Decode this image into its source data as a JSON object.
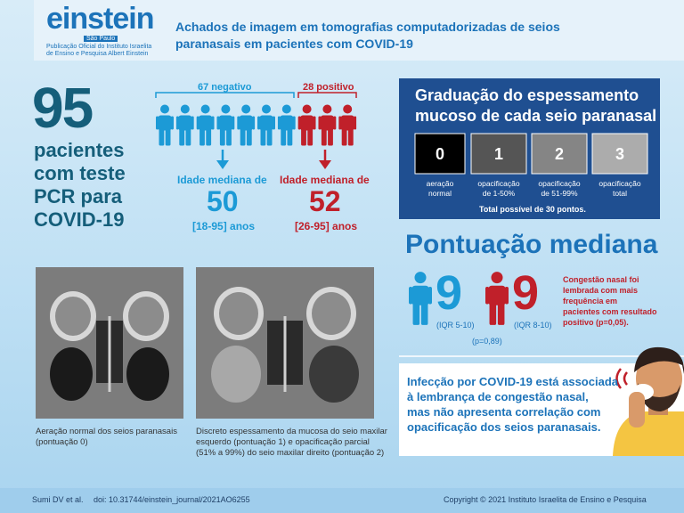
{
  "header": {
    "logo": "einstein",
    "logo_subtitle": "São Paulo",
    "publisher": [
      "Publicação Oficial do Instituto Israelita",
      "de Ensino e Pesquisa Albert Einstein"
    ],
    "title": [
      "Achados de imagem em tomografias computadorizadas de seios",
      "paranasais em pacientes com COVID-19"
    ]
  },
  "patients": {
    "total": "95",
    "description": [
      "pacientes",
      "com teste",
      "PCR para",
      "COVID-19"
    ],
    "negative": {
      "label": "67 negativo",
      "age_label": "Idade mediana de",
      "age": "50",
      "range": "[18-95] anos"
    },
    "positive": {
      "label": "28 positivo",
      "age_label": "Idade mediana de",
      "age": "52",
      "range": "[26-95] anos"
    }
  },
  "grading": {
    "title": [
      "Graduação do espessamento",
      "mucoso de cada seio paranasal"
    ],
    "levels": [
      {
        "score": "0",
        "label": [
          "aeração",
          "normal"
        ]
      },
      {
        "score": "1",
        "label": [
          "opacificação",
          "de 1-50%"
        ]
      },
      {
        "score": "2",
        "label": [
          "opacificação",
          "de 51-99%"
        ]
      },
      {
        "score": "3",
        "label": [
          "opacificação",
          "total"
        ]
      }
    ],
    "note": "Total possível de 30 pontos."
  },
  "median_score": {
    "title": "Pontuação mediana",
    "negative": {
      "score": "9",
      "iqr": "(IQR 5-10)"
    },
    "positive": {
      "score": "9",
      "iqr": "(IQR 8-10)"
    },
    "p_value": "(p=0,89)",
    "note": [
      "Congestão nasal foi",
      "lembrada com mais",
      "frequência em",
      "pacientes com resultado",
      "positivo (p=0,05)."
    ]
  },
  "images": [
    {
      "caption": [
        "Aeração normal dos seios paranasais",
        "(pontuação 0)"
      ]
    },
    {
      "caption": [
        "Discreto espessamento da mucosa do seio maxilar",
        "esquerdo (pontuação 1) e opacificação parcial",
        "(51% a 99%) do seio maxilar direito (pontuação 2)"
      ]
    }
  ],
  "conclusion": [
    "Infecção por COVID-19 está associada",
    "à lembrança de congestão nasal,",
    "mas não apresenta correlação com",
    "opacificação dos seios paranasais."
  ],
  "footer": {
    "citation": "Sumi DV et al.",
    "doi": "doi: 10.31744/einstein_journal/2021AO6255",
    "copyright": "Copyright © 2021 Instituto Israelita de Ensino e Pesquisa"
  }
}
